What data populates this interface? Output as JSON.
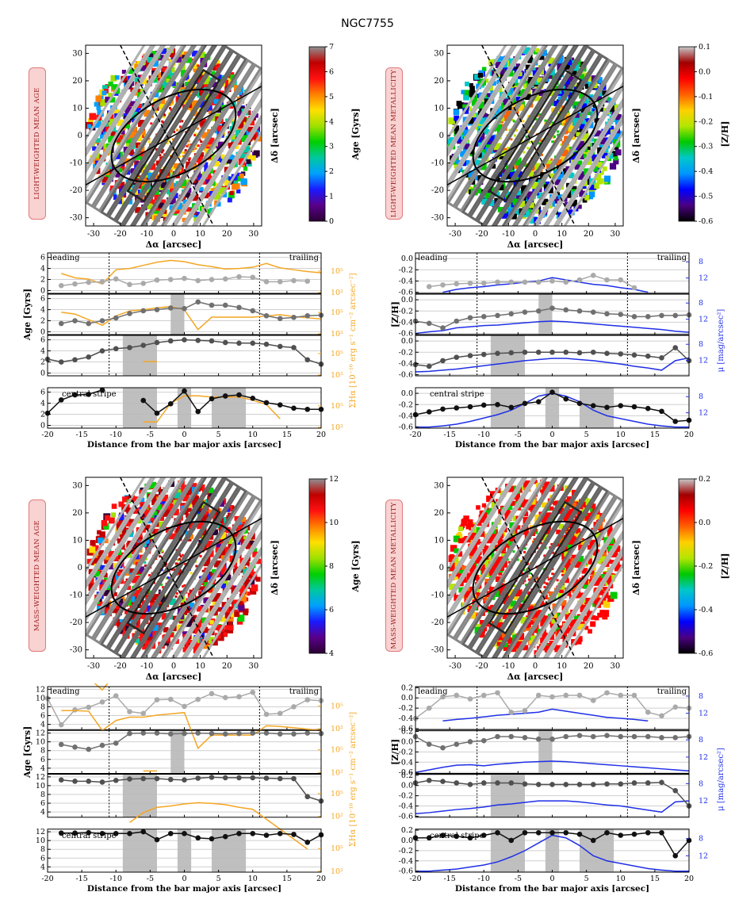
{
  "title": "NGC7755",
  "map_axes": {
    "xlabel": "Δα [arcsec]",
    "ylabel": "Δδ [arcsec]",
    "ticks": [
      -30,
      -20,
      -10,
      0,
      10,
      20,
      30
    ]
  },
  "profile_common": {
    "xlabel": "Distance from the bar major axis [arcsec]",
    "xticks": [
      -20,
      -15,
      -10,
      -5,
      0,
      5,
      10,
      15,
      20
    ],
    "xlim": [
      -20,
      20
    ],
    "leading_label": "leading",
    "trailing_label": "trailing",
    "central_label": "central stripe",
    "bar_edges": [
      -11,
      11
    ],
    "right_color": "#f5a623",
    "right_color_met": "#1f2fe6"
  },
  "maps": [
    {
      "id": "lw-age",
      "label": "LIGHT-WEIGHTED MEAN AGE",
      "cbar_label": "Age [Gyrs]",
      "cbar_ticks": [
        0,
        1,
        2,
        3,
        4,
        5,
        6,
        7
      ],
      "cmap": "age"
    },
    {
      "id": "lw-met",
      "label": "LIGHT-WEIGHTED MEAN METALLICITY",
      "cbar_label": "[Z/H]",
      "cbar_ticks": [
        0.1,
        0.0,
        -0.1,
        -0.2,
        -0.3,
        -0.4,
        -0.5,
        -0.6
      ],
      "cmap": "met"
    },
    {
      "id": "mw-age",
      "label": "MASS-WEIGHTED MEAN AGE",
      "cbar_label": "Age [Gyrs]",
      "cbar_ticks": [
        12,
        10,
        8,
        6,
        4
      ],
      "cmap": "age"
    },
    {
      "id": "mw-met",
      "label": "MASS-WEIGHTED MEAN METALLICITY",
      "cbar_label": "[Z/H]",
      "cbar_ticks": [
        0.2,
        0.0,
        -0.2,
        -0.4,
        -0.6
      ],
      "cmap": "met"
    }
  ],
  "chart_data": [
    {
      "type": "line",
      "id": "lw-age-profiles",
      "ylabel": "Age [Gyrs]",
      "y2label": "ΣHα [10⁻¹⁶ erg s⁻¹ cm⁻² arcsec⁻²]",
      "yticks": [
        0,
        2,
        4,
        6
      ],
      "ylim": [
        -0.5,
        6.8
      ],
      "y2ticks": [
        "10²",
        "10⁵"
      ],
      "x": [
        -20,
        -18,
        -16,
        -14,
        -12,
        -10,
        -8,
        -6,
        -4,
        -2,
        0,
        2,
        4,
        6,
        8,
        10,
        12,
        14,
        16,
        18,
        20
      ],
      "panels": [
        {
          "name": "leading",
          "values": [
            null,
            0.9,
            1.2,
            1.5,
            1.6,
            2.1,
            1.1,
            1.3,
            1.9,
            2.0,
            2.2,
            1.8,
            2.0,
            2.1,
            2.5,
            2.4,
            1.6,
            1.6,
            1.8,
            1.7,
            null
          ],
          "sigma": [
            null,
            3.2,
            2.5,
            2.3,
            1.5,
            3.8,
            4.0,
            4.5,
            5.0,
            5.3,
            5.1,
            4.6,
            4.3,
            3.9,
            4.0,
            4.2,
            4.8,
            4.1,
            3.8,
            3.5,
            3.3
          ],
          "shaded": []
        },
        {
          "name": "middle",
          "values": [
            null,
            1.5,
            2.0,
            1.5,
            2.0,
            2.5,
            3.3,
            3.8,
            4.0,
            4.3,
            4.2,
            5.4,
            4.8,
            4.8,
            4.4,
            3.8,
            2.9,
            2.4,
            2.6,
            2.9,
            3.0
          ],
          "sigma": [
            null,
            3.6,
            3.3,
            2.4,
            1.5,
            3.0,
            3.8,
            4.0,
            4.3,
            4.5,
            4.0,
            0.8,
            2.8,
            2.8,
            2.8,
            2.8,
            3.0,
            3.2,
            2.9,
            2.7,
            2.5
          ],
          "shaded": [
            [
              -2,
              0
            ]
          ]
        },
        {
          "name": "lower",
          "values": [
            2.5,
            2.0,
            2.4,
            2.9,
            4.0,
            4.4,
            4.6,
            5.0,
            5.5,
            5.8,
            6.0,
            5.9,
            5.8,
            5.5,
            5.4,
            5.4,
            5.2,
            4.8,
            4.6,
            2.4,
            1.6
          ],
          "sigma": [
            0.2,
            null,
            null,
            null,
            null,
            null,
            null,
            2.3,
            2.3,
            null,
            null,
            null,
            null,
            null,
            null,
            null,
            null,
            null,
            null,
            null,
            0.2
          ],
          "shaded": [
            [
              -9,
              -4
            ]
          ]
        },
        {
          "name": "central",
          "values": [
            2.2,
            4.6,
            5.5,
            5.6,
            6.4,
            null,
            null,
            4.5,
            2.2,
            3.9,
            6.2,
            2.5,
            4.8,
            5.3,
            5.5,
            4.9,
            4.1,
            3.7,
            3.1,
            2.9,
            2.9
          ],
          "sigma": [
            null,
            null,
            null,
            null,
            null,
            null,
            null,
            1.0,
            1.0,
            4.0,
            5.2,
            5.2,
            5.0,
            5.0,
            5.0,
            4.5,
            3.8,
            1.5,
            null,
            null,
            null
          ],
          "shaded": [
            [
              -9,
              -4
            ],
            [
              -1,
              1
            ],
            [
              4,
              9
            ]
          ]
        }
      ]
    },
    {
      "type": "line",
      "id": "lw-met-profiles",
      "ylabel": "[Z/H]",
      "y2label": "μ [mag/arcsec²]",
      "yticks": [
        -0.6,
        -0.4,
        -0.2,
        0.0
      ],
      "ylim": [
        -0.62,
        0.1
      ],
      "y2ticks": [
        "8",
        "12"
      ],
      "x": [
        -20,
        -18,
        -16,
        -14,
        -12,
        -10,
        -8,
        -6,
        -4,
        -2,
        0,
        2,
        4,
        6,
        8,
        10,
        12,
        14,
        16,
        18,
        20
      ],
      "panels": [
        {
          "name": "leading",
          "values": [
            null,
            -0.5,
            -0.47,
            -0.45,
            -0.44,
            -0.44,
            -0.42,
            -0.42,
            -0.42,
            -0.42,
            -0.4,
            -0.42,
            -0.38,
            -0.3,
            -0.38,
            -0.38,
            -0.52,
            null,
            null,
            null,
            null
          ],
          "mu": [
            null,
            null,
            -0.6,
            -0.55,
            -0.52,
            -0.5,
            -0.47,
            -0.45,
            -0.42,
            -0.4,
            -0.34,
            -0.38,
            -0.42,
            -0.46,
            -0.48,
            -0.52,
            -0.55,
            -0.6,
            null,
            null,
            null
          ],
          "shaded": []
        },
        {
          "name": "middle",
          "values": [
            -0.38,
            -0.42,
            -0.5,
            -0.38,
            -0.32,
            -0.3,
            -0.28,
            -0.25,
            -0.22,
            -0.2,
            -0.15,
            -0.18,
            -0.2,
            -0.22,
            -0.25,
            -0.26,
            -0.3,
            -0.3,
            -0.28,
            -0.28,
            -0.27
          ],
          "mu": [
            -0.6,
            -0.57,
            -0.55,
            -0.5,
            -0.48,
            -0.46,
            -0.45,
            -0.43,
            -0.41,
            -0.39,
            -0.38,
            -0.39,
            -0.41,
            -0.43,
            -0.45,
            -0.47,
            -0.49,
            -0.51,
            -0.53,
            -0.56,
            -0.58
          ],
          "shaded": [
            [
              -2,
              0
            ]
          ]
        },
        {
          "name": "lower",
          "values": [
            -0.42,
            -0.45,
            -0.35,
            -0.29,
            -0.26,
            -0.24,
            -0.22,
            -0.21,
            -0.2,
            -0.2,
            -0.2,
            -0.2,
            -0.21,
            -0.2,
            -0.22,
            -0.23,
            -0.25,
            -0.27,
            -0.3,
            -0.12,
            -0.35
          ],
          "mu": [
            -0.55,
            -0.54,
            -0.52,
            -0.5,
            -0.47,
            -0.44,
            -0.41,
            -0.38,
            -0.35,
            -0.33,
            -0.31,
            -0.31,
            -0.33,
            -0.35,
            -0.38,
            -0.41,
            -0.45,
            -0.48,
            -0.52,
            -0.35,
            -0.3
          ],
          "shaded": [
            [
              -9,
              -4
            ]
          ]
        },
        {
          "name": "central",
          "values": [
            -0.38,
            -0.33,
            -0.28,
            -0.26,
            -0.24,
            -0.21,
            -0.2,
            -0.25,
            -0.18,
            -0.15,
            0.02,
            -0.1,
            -0.18,
            -0.22,
            -0.25,
            -0.22,
            -0.24,
            -0.27,
            -0.32,
            -0.5,
            -0.48
          ],
          "mu": [
            -0.6,
            -0.6,
            -0.58,
            -0.55,
            -0.5,
            -0.44,
            -0.38,
            -0.3,
            -0.18,
            -0.05,
            0.0,
            -0.05,
            -0.15,
            -0.3,
            -0.4,
            -0.45,
            -0.5,
            -0.55,
            -0.58,
            -0.6,
            -0.6
          ],
          "shaded": [
            [
              -9,
              -4
            ],
            [
              -1,
              1
            ],
            [
              4,
              9
            ]
          ]
        }
      ]
    },
    {
      "type": "line",
      "id": "mw-age-profiles",
      "ylabel": "Age [Gyrs]",
      "y2label": "ΣHα [10⁻¹⁶ erg s⁻¹ cm⁻² arcsec⁻²]",
      "yticks": [
        4,
        6,
        8,
        10,
        12
      ],
      "ylim": [
        2.8,
        12.6
      ],
      "y2ticks": [
        "10²",
        "10⁵"
      ],
      "x": [
        -20,
        -18,
        -16,
        -14,
        -12,
        -10,
        -8,
        -6,
        -4,
        -2,
        0,
        2,
        4,
        6,
        8,
        10,
        12,
        14,
        16,
        18,
        20
      ],
      "panels": [
        {
          "name": "leading",
          "values": [
            9.9,
            3.9,
            7.3,
            7.9,
            9.1,
            10.5,
            6.9,
            6.5,
            9.6,
            9.7,
            8.1,
            9.7,
            11.0,
            10.1,
            10.3,
            11.3,
            6.3,
            6.5,
            8.0,
            9.6,
            9.4
          ],
          "sigma": [
            null,
            8.5,
            8.1,
            7.8,
            6.0,
            8.5,
            9.2,
            9.5,
            9.8,
            10.2,
            10.4,
            10.3,
            9.8,
            9.6,
            9.2,
            9.3,
            9.5,
            9.1,
            8.7,
            8.4,
            7.5
          ],
          "shaded": []
        },
        {
          "name": "middle",
          "values": [
            null,
            9.4,
            8.8,
            8.3,
            9.2,
            9.7,
            11.9,
            12.0,
            12.0,
            11.8,
            11.9,
            12.0,
            11.9,
            11.8,
            11.9,
            12.0,
            12.0,
            11.8,
            11.8,
            12.0,
            11.9
          ],
          "sigma": [
            null,
            9.5,
            9.5,
            9.4,
            6.5,
            8.0,
            8.5,
            8.5,
            8.8,
            9.0,
            9.2,
            3.8,
            5.8,
            5.8,
            5.8,
            5.8,
            7.2,
            7.1,
            6.9,
            6.7,
            6.5
          ],
          "shaded": [
            [
              -2,
              0
            ]
          ]
        },
        {
          "name": "lower",
          "values": [
            null,
            11.3,
            11.0,
            11.0,
            10.8,
            11.2,
            11.5,
            11.6,
            11.6,
            11.4,
            11.3,
            11.7,
            11.9,
            11.8,
            11.8,
            11.8,
            11.7,
            11.6,
            11.6,
            7.5,
            6.5
          ],
          "sigma": [
            6.5,
            null,
            null,
            null,
            null,
            null,
            null,
            7.0,
            7.0,
            null,
            null,
            null,
            null,
            null,
            null,
            null,
            null,
            null,
            null,
            null,
            3.5
          ],
          "shaded": [
            [
              -9,
              -4
            ]
          ]
        },
        {
          "name": "central",
          "values": [
            null,
            11.7,
            11.7,
            11.8,
            11.6,
            11.6,
            11.6,
            12.0,
            10.2,
            11.6,
            11.6,
            10.6,
            10.4,
            10.9,
            11.6,
            11.6,
            11.2,
            11.6,
            11.4,
            9.6,
            11.3
          ],
          "sigma": [
            null,
            null,
            null,
            null,
            null,
            null,
            7.5,
            9.0,
            9.8,
            10.0,
            10.3,
            10.5,
            10.4,
            10.2,
            9.8,
            9.5,
            8.0,
            6.5,
            5.0,
            3.5,
            null
          ],
          "shaded": [
            [
              -9,
              -4
            ],
            [
              -1,
              1
            ],
            [
              4,
              9
            ]
          ]
        }
      ]
    },
    {
      "type": "line",
      "id": "mw-met-profiles",
      "ylabel": "[Z/H]",
      "y2label": "μ [mag/arcsec²]",
      "yticks": [
        -0.6,
        -0.4,
        -0.2,
        0.0,
        0.2
      ],
      "ylim": [
        -0.62,
        0.22
      ],
      "y2ticks": [
        "8",
        "12"
      ],
      "x": [
        -20,
        -18,
        -16,
        -14,
        -12,
        -10,
        -8,
        -6,
        -4,
        -2,
        0,
        2,
        4,
        6,
        8,
        10,
        12,
        14,
        16,
        18,
        20
      ],
      "panels": [
        {
          "name": "leading",
          "values": [
            -0.4,
            -0.2,
            0.02,
            0.05,
            -0.02,
            0.05,
            0.1,
            -0.28,
            -0.25,
            0.05,
            0.02,
            0.05,
            0.05,
            -0.05,
            0.1,
            0.05,
            0.05,
            -0.28,
            -0.35,
            -0.18,
            -0.2
          ],
          "mu": [
            null,
            null,
            -0.45,
            -0.42,
            -0.4,
            -0.37,
            -0.34,
            -0.32,
            -0.3,
            -0.28,
            -0.22,
            -0.26,
            -0.3,
            -0.34,
            -0.38,
            -0.4,
            -0.42,
            -0.45,
            null,
            null,
            null
          ],
          "shaded": []
        },
        {
          "name": "middle",
          "values": [
            0.1,
            -0.05,
            -0.12,
            -0.05,
            0.0,
            0.02,
            0.1,
            0.1,
            0.08,
            0.05,
            0.05,
            0.1,
            0.12,
            0.1,
            0.12,
            0.1,
            0.1,
            0.1,
            0.08,
            0.08,
            0.1
          ],
          "mu": [
            -0.6,
            -0.55,
            -0.5,
            -0.46,
            -0.45,
            -0.47,
            -0.44,
            -0.42,
            -0.4,
            -0.39,
            -0.38,
            -0.39,
            -0.41,
            -0.43,
            -0.45,
            -0.47,
            -0.49,
            -0.51,
            -0.53,
            -0.55,
            -0.57
          ],
          "shaded": [
            [
              -2,
              0
            ]
          ]
        },
        {
          "name": "lower",
          "values": [
            0.05,
            0.1,
            0.08,
            0.05,
            0.02,
            0.05,
            0.05,
            0.05,
            0.03,
            0.02,
            0.02,
            0.02,
            0.02,
            0.02,
            0.03,
            0.03,
            0.05,
            0.05,
            0.06,
            -0.1,
            -0.4
          ],
          "mu": [
            -0.55,
            -0.53,
            -0.5,
            -0.47,
            -0.45,
            -0.42,
            -0.38,
            -0.36,
            -0.33,
            -0.3,
            -0.3,
            -0.3,
            -0.32,
            -0.35,
            -0.38,
            -0.4,
            -0.44,
            -0.48,
            -0.52,
            -0.32,
            -0.3
          ],
          "shaded": [
            [
              -9,
              -4
            ]
          ]
        },
        {
          "name": "central",
          "values": [
            0.05,
            0.05,
            0.1,
            0.08,
            0.05,
            0.1,
            0.15,
            0.0,
            0.15,
            0.15,
            0.15,
            0.15,
            0.12,
            0.0,
            0.15,
            0.1,
            0.12,
            0.15,
            0.15,
            -0.3,
            0.0
          ],
          "mu": [
            -0.6,
            -0.6,
            -0.58,
            -0.56,
            -0.52,
            -0.48,
            -0.42,
            -0.32,
            -0.2,
            -0.05,
            0.1,
            0.05,
            -0.1,
            -0.3,
            -0.4,
            -0.45,
            -0.5,
            -0.55,
            -0.58,
            -0.6,
            -0.6
          ],
          "shaded": [
            [
              -9,
              -4
            ],
            [
              -1,
              1
            ],
            [
              4,
              9
            ]
          ]
        }
      ]
    }
  ]
}
